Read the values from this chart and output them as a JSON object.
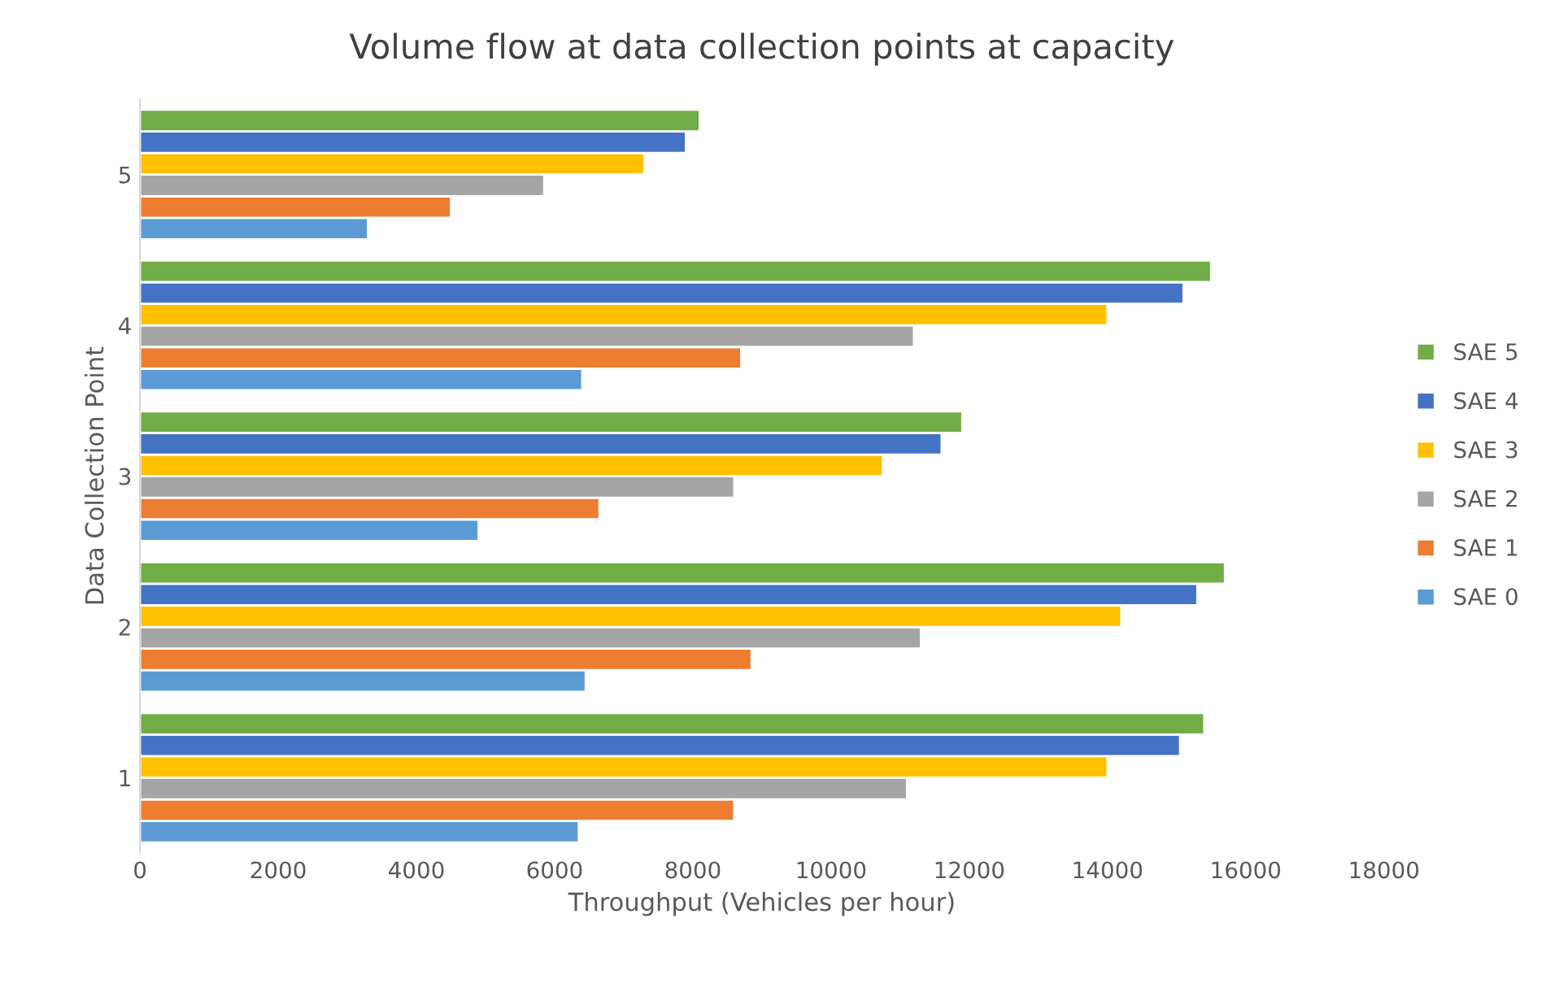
{
  "chart_data": {
    "type": "bar",
    "orientation": "horizontal",
    "title": "Volume flow at data collection points at capacity",
    "xlabel": "Throughput (Vehicles per hour)",
    "ylabel": "Data Collection Point",
    "categories": [
      "5",
      "4",
      "3",
      "2",
      "1"
    ],
    "series": [
      {
        "name": "SAE 0",
        "color": "#5b9bd5",
        "values": [
          3300,
          6400,
          4900,
          6450,
          6350
        ]
      },
      {
        "name": "SAE 1",
        "color": "#ed7d31",
        "values": [
          4500,
          8700,
          6650,
          8850,
          8600
        ]
      },
      {
        "name": "SAE 2",
        "color": "#a5a5a5",
        "values": [
          5850,
          11200,
          8600,
          11300,
          11100
        ]
      },
      {
        "name": "SAE 3",
        "color": "#ffc000",
        "values": [
          7300,
          14000,
          10750,
          14200,
          14000
        ]
      },
      {
        "name": "SAE 4",
        "color": "#4472c4",
        "values": [
          7900,
          15100,
          11600,
          15300,
          15050
        ]
      },
      {
        "name": "SAE 5",
        "color": "#70ad47",
        "values": [
          8100,
          15500,
          11900,
          15700,
          15400
        ]
      }
    ],
    "xlim": [
      0,
      18000
    ],
    "xticks": [
      0,
      2000,
      4000,
      6000,
      8000,
      10000,
      12000,
      14000,
      16000,
      18000
    ],
    "grid": false,
    "legend": "right"
  }
}
